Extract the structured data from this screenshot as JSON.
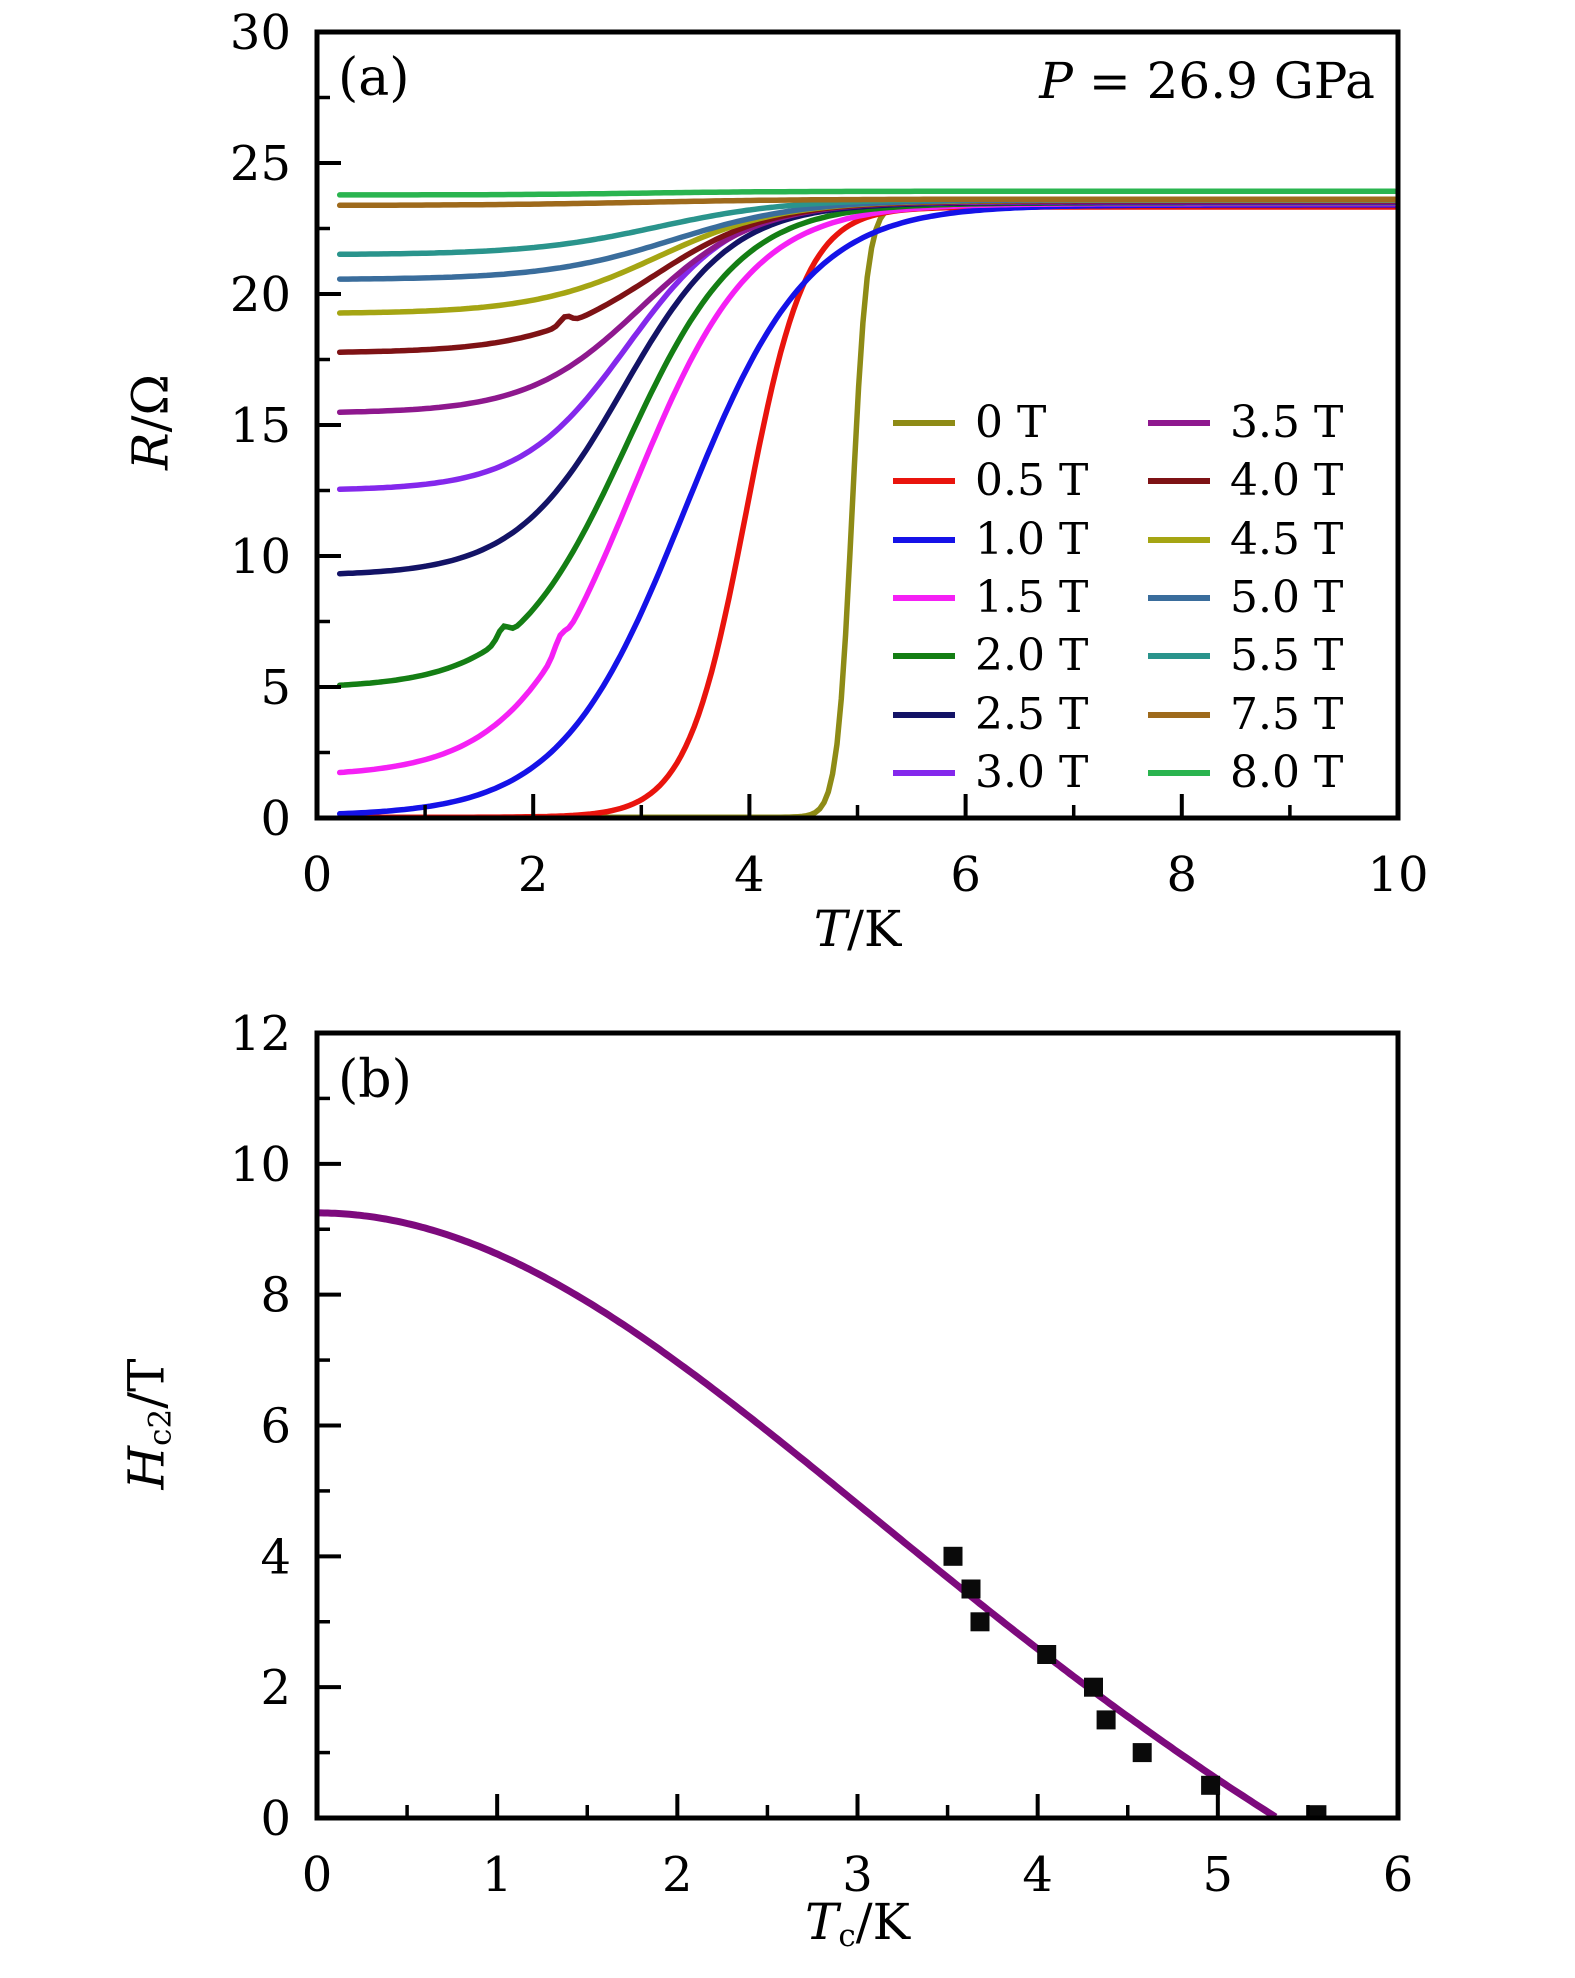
{
  "panels": {
    "a": {
      "label": "(a)",
      "annotation": {
        "var": "P",
        "rest": " = 26.9 GPa"
      },
      "xlabel": {
        "var": "T",
        "sub": "",
        "rest": "/K"
      },
      "ylabel": {
        "var": "R",
        "sub": "",
        "rest": "/Ω"
      }
    },
    "b": {
      "label": "(b)",
      "xlabel": {
        "var": "T",
        "sub": "c",
        "rest": "/K"
      },
      "ylabel": {
        "var": "H",
        "sub": "c2",
        "rest": "/T"
      }
    }
  },
  "chart_data": [
    {
      "type": "line",
      "panel": "a",
      "title": "",
      "annotation": "P = 26.9 GPa",
      "xlabel": "T/K",
      "ylabel": "R/Ω",
      "xlim": [
        0,
        10
      ],
      "ylim": [
        0,
        30
      ],
      "xtick_values": [
        0,
        2,
        4,
        6,
        8,
        10
      ],
      "xtick_labels": [
        "0",
        "2",
        "4",
        "6",
        "8",
        "10"
      ],
      "ytick_values": [
        0,
        5,
        10,
        15,
        20,
        25,
        30
      ],
      "ytick_labels": [
        "0",
        "5",
        "10",
        "15",
        "20",
        "25",
        "30"
      ],
      "x_minor": [
        1,
        3,
        5,
        7,
        9
      ],
      "y_minor": [
        2.5,
        7.5,
        12.5,
        17.5,
        22.5,
        27.5
      ],
      "grid": false,
      "legend_position": "center-right, two columns, no frame",
      "t_range": [
        0.21,
        10
      ],
      "model_note": "R(T) = r_low + (r_normal - r_low) * 0.5*(1 + tanh((T - t_mid)/width)); r_low is the low-T plateau read off the left edge of the plot",
      "series": [
        {
          "label": "0 T",
          "color": "#8e8b16",
          "r_low": 0.03,
          "t_mid": 4.95,
          "width": 0.14,
          "r_normal": 23.42
        },
        {
          "label": "0.5 T",
          "color": "#e9140d",
          "r_low": 0.03,
          "t_mid": 3.97,
          "width": 0.55,
          "r_normal": 23.32
        },
        {
          "label": "1.0 T",
          "color": "#1512e8",
          "r_low": 0.07,
          "t_mid": 3.4,
          "width": 1.15,
          "r_normal": 23.4
        },
        {
          "label": "1.5 T",
          "color": "#f520f5",
          "r_low": 1.58,
          "t_mid": 2.92,
          "width": 1.1,
          "r_normal": 23.45,
          "glitch": {
            "t": 2.25,
            "amp": 0.4
          }
        },
        {
          "label": "2.0 T",
          "color": "#147e14",
          "r_low": 4.95,
          "t_mid": 2.86,
          "width": 1.05,
          "r_normal": 23.48,
          "glitch": {
            "t": 1.72,
            "amp": 0.45
          }
        },
        {
          "label": "2.5 T",
          "color": "#131366",
          "r_low": 9.25,
          "t_mid": 2.83,
          "width": 1.0,
          "r_normal": 23.5
        },
        {
          "label": "3.0 T",
          "color": "#8428ec",
          "r_low": 12.5,
          "t_mid": 2.87,
          "width": 0.98,
          "r_normal": 23.52
        },
        {
          "label": "3.5 T",
          "color": "#8e188e",
          "r_low": 15.45,
          "t_mid": 3.0,
          "width": 1.05,
          "r_normal": 23.54
        },
        {
          "label": "4.0 T",
          "color": "#7e1215",
          "r_low": 17.75,
          "t_mid": 3.1,
          "width": 1.1,
          "r_normal": 23.56,
          "glitch": {
            "t": 2.3,
            "amp": 0.3
          }
        },
        {
          "label": "4.5 T",
          "color": "#a5a513",
          "r_low": 19.25,
          "t_mid": 3.15,
          "width": 1.15,
          "r_normal": 23.58
        },
        {
          "label": "5.0 T",
          "color": "#3a6d9c",
          "r_low": 20.55,
          "t_mid": 3.3,
          "width": 1.2,
          "r_normal": 23.6
        },
        {
          "label": "5.5 T",
          "color": "#2a948c",
          "r_low": 21.5,
          "t_mid": 3.15,
          "width": 1.2,
          "r_normal": 23.62
        },
        {
          "label": "7.5 T",
          "color": "#9e6a1c",
          "r_low": 23.38,
          "t_mid": 3.0,
          "width": 1.5,
          "r_normal": 23.62
        },
        {
          "label": "8.0 T",
          "color": "#2ab44f",
          "r_low": 23.78,
          "t_mid": 3.0,
          "width": 1.2,
          "r_normal": 23.92
        }
      ]
    },
    {
      "type": "scatter",
      "panel": "b",
      "title": "",
      "xlabel": "Tc/K",
      "ylabel": "Hc2/T",
      "xlim": [
        0,
        6
      ],
      "ylim": [
        0,
        12
      ],
      "xtick_values": [
        0,
        1,
        2,
        3,
        4,
        5,
        6
      ],
      "xtick_labels": [
        "0",
        "1",
        "2",
        "3",
        "4",
        "5",
        "6"
      ],
      "ytick_values": [
        0,
        2,
        4,
        6,
        8,
        10,
        12
      ],
      "ytick_labels": [
        "0",
        "2",
        "4",
        "6",
        "8",
        "10",
        "12"
      ],
      "x_minor": [
        0.5,
        1.5,
        2.5,
        3.5,
        4.5,
        5.5
      ],
      "y_minor": [
        1,
        3,
        5,
        7,
        9,
        11
      ],
      "grid": false,
      "marker": "square",
      "marker_color": "#0a0a0a",
      "marker_size": 19,
      "points": [
        [
          3.53,
          4.0
        ],
        [
          3.63,
          3.5
        ],
        [
          3.68,
          3.0
        ],
        [
          4.05,
          2.5
        ],
        [
          4.31,
          2.0
        ],
        [
          4.38,
          1.5
        ],
        [
          4.58,
          1.0
        ],
        [
          4.96,
          0.5
        ],
        [
          5.55,
          0.05
        ]
      ],
      "fit": {
        "h0": 9.25,
        "tc_zero": 5.33,
        "color": "#7d0a7d",
        "form": "H(T) = h0*(1 - t^2)/(1 + t^2), t = T/tc_zero"
      }
    }
  ]
}
